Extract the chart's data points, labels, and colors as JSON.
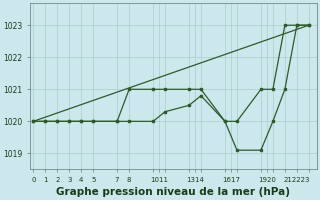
{
  "bg_color": "#cce8ec",
  "grid_color": "#aacccc",
  "line_color": "#2d5a2d",
  "title": "Graphe pression niveau de la mer (hPa)",
  "title_fontsize": 7.5,
  "title_color": "#1a3a1a",
  "ylim": [
    1018.5,
    1023.7
  ],
  "yticks": [
    1019,
    1020,
    1021,
    1022,
    1023
  ],
  "xtick_positions": [
    0,
    1,
    2,
    3,
    4,
    5,
    7,
    8,
    10,
    11,
    13,
    14,
    16,
    17,
    19,
    20,
    21,
    22,
    23
  ],
  "xtick_labels": [
    "0",
    "1",
    "2",
    "3",
    "4",
    "5",
    "7",
    "8",
    "1011",
    "1314",
    "1617",
    "1920",
    "212223"
  ],
  "xtick_label_positions": [
    0,
    1,
    2,
    3,
    4,
    5,
    7,
    8,
    10.5,
    13.5,
    16.5,
    19.5,
    22
  ],
  "xlim": [
    -0.3,
    23.7
  ],
  "trend_x": [
    0,
    23
  ],
  "trend_y": [
    1020,
    1023
  ],
  "line1_x": [
    0,
    1,
    2,
    3,
    4,
    5,
    7,
    8,
    10,
    11,
    13,
    14,
    16,
    17,
    19,
    20,
    21,
    22,
    23
  ],
  "line1_y": [
    1020,
    1020,
    1020,
    1020,
    1020,
    1020,
    1020,
    1021,
    1021,
    1021,
    1021,
    1021,
    1020,
    1020,
    1021,
    1021,
    1023,
    1023,
    1023
  ],
  "line2_x": [
    0,
    1,
    2,
    3,
    4,
    5,
    7,
    8,
    10,
    11,
    13,
    14,
    16,
    17,
    19,
    20,
    21,
    22,
    23
  ],
  "line2_y": [
    1020,
    1020,
    1020,
    1020,
    1020,
    1020,
    1020,
    1020,
    1020,
    1020.3,
    1020.5,
    1020.8,
    1020,
    1019.1,
    1019.1,
    1020,
    1021,
    1023,
    1023
  ]
}
